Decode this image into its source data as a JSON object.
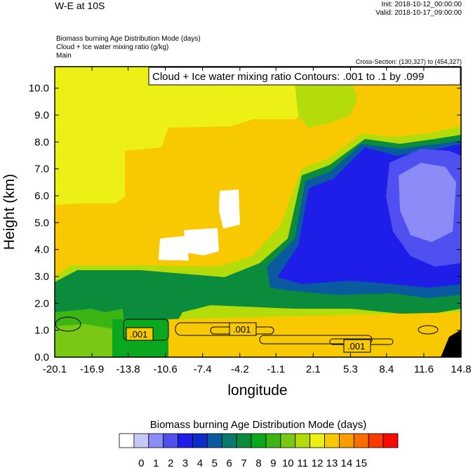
{
  "header": {
    "title": "W-E at 10S",
    "init": "Init: 2018-10-12_00:00:00",
    "valid": "Valid: 2018-10-17_09:00:00",
    "fields": [
      "Biomass burning Age Distribution Mode   (days)",
      "Cloud + Ice water mixing ratio   (g/kg)",
      "Main"
    ],
    "cross_section": "Cross-Section: (130,327) to (454,327)"
  },
  "contour_box": "Cloud + Ice water mixing ratio Contours: .001 to .1 by .099",
  "contour_labels": [
    ".001",
    ".001",
    ".001"
  ],
  "chart_data": {
    "type": "heatmap",
    "title": "W-E at 10S",
    "xlabel": "longitude",
    "ylabel": "Height (km)",
    "x_ticks": [
      "-20.1",
      "-16.9",
      "-13.8",
      "-10.6",
      "-7.4",
      "-4.2",
      "-1.1",
      "2.1",
      "5.3",
      "8.4",
      "11.6",
      "14.8"
    ],
    "y_ticks": [
      "0.0",
      "1.0",
      "2.0",
      "3.0",
      "4.0",
      "5.0",
      "6.0",
      "7.0",
      "8.0",
      "9.0",
      "10.0"
    ],
    "xlim": [
      -20.1,
      14.8
    ],
    "ylim": [
      0,
      10.8
    ],
    "colorbar": {
      "title": "Biomass burning Age Distribution Mode  (days)",
      "labels": [
        "0",
        "1",
        "2",
        "3",
        "4",
        "5",
        "6",
        "7",
        "8",
        "9",
        "10",
        "11",
        "12",
        "13",
        "14",
        "15"
      ],
      "colors": [
        "#ffffff",
        "#c8c8f8",
        "#8c8cf8",
        "#5050f0",
        "#1e1ee8",
        "#0a2cc8",
        "#0a5aa0",
        "#0a7a6e",
        "#0a8c3c",
        "#0aa81e",
        "#3cb414",
        "#78c814",
        "#b4dc0a",
        "#ecf014",
        "#f8c800",
        "#f89c00",
        "#f86e00",
        "#f83c00",
        "#f80a00"
      ]
    },
    "fill_age_days": {
      "upper_left": 12.5,
      "upper_right_yellow_green": 11.5,
      "mid_layer_green": 8,
      "plume_blue": 3.5,
      "boundary_layer": 13,
      "white_pockets": 0
    }
  }
}
